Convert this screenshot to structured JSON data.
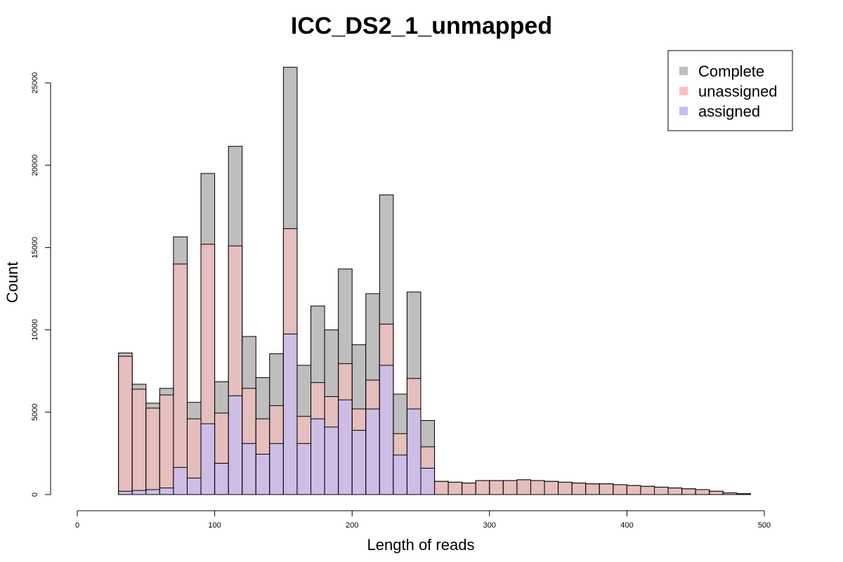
{
  "chart_data": {
    "type": "bar",
    "title": "ICC_DS2_1_unmapped",
    "xlabel": "Length of reads",
    "ylabel": "Count",
    "xlim": [
      0,
      500
    ],
    "ylim": [
      0,
      25000
    ],
    "x_ticks": [
      0,
      100,
      200,
      300,
      400,
      500
    ],
    "y_ticks": [
      0,
      5000,
      10000,
      15000,
      20000,
      25000
    ],
    "grid": false,
    "legend_position": "top-right",
    "bin_width": 10,
    "bin_starts": [
      30,
      40,
      50,
      60,
      70,
      80,
      90,
      100,
      110,
      120,
      130,
      140,
      150,
      160,
      170,
      180,
      190,
      200,
      210,
      220,
      230,
      240,
      250,
      260,
      270,
      280,
      290,
      300,
      310,
      320,
      330,
      340,
      350,
      360,
      370,
      380,
      390,
      400,
      410,
      420,
      430,
      440,
      450,
      460,
      470,
      480
    ],
    "series": [
      {
        "name": "Complete",
        "color": "#bebebe",
        "values": [
          8600,
          6700,
          5550,
          6450,
          15650,
          5600,
          19500,
          6850,
          21150,
          9600,
          7100,
          8550,
          25950,
          7850,
          11450,
          10000,
          13700,
          9100,
          12200,
          18200,
          6100,
          12300,
          4500,
          800,
          750,
          700,
          850,
          850,
          850,
          900,
          850,
          800,
          750,
          700,
          650,
          650,
          600,
          550,
          500,
          450,
          400,
          350,
          300,
          200,
          100,
          50
        ]
      },
      {
        "name": "unassigned",
        "color": "#ffbebe",
        "values": [
          8400,
          6400,
          5250,
          6050,
          14000,
          4600,
          15200,
          4950,
          15100,
          6450,
          4600,
          5400,
          16150,
          4750,
          6800,
          5950,
          7950,
          5200,
          6950,
          10350,
          3700,
          7050,
          2900,
          800,
          750,
          700,
          850,
          850,
          850,
          900,
          850,
          800,
          750,
          700,
          650,
          650,
          600,
          550,
          500,
          450,
          400,
          350,
          300,
          200,
          100,
          50
        ]
      },
      {
        "name": "assigned",
        "color": "#bebeff",
        "values": [
          200,
          250,
          300,
          400,
          1650,
          1000,
          4300,
          1900,
          6000,
          3100,
          2450,
          3100,
          9750,
          3100,
          4600,
          4100,
          5750,
          3900,
          5200,
          7850,
          2400,
          5200,
          1600,
          0,
          0,
          0,
          0,
          0,
          0,
          0,
          0,
          0,
          0,
          0,
          0,
          0,
          0,
          0,
          0,
          0,
          0,
          0,
          0,
          0,
          0,
          0
        ]
      }
    ]
  }
}
